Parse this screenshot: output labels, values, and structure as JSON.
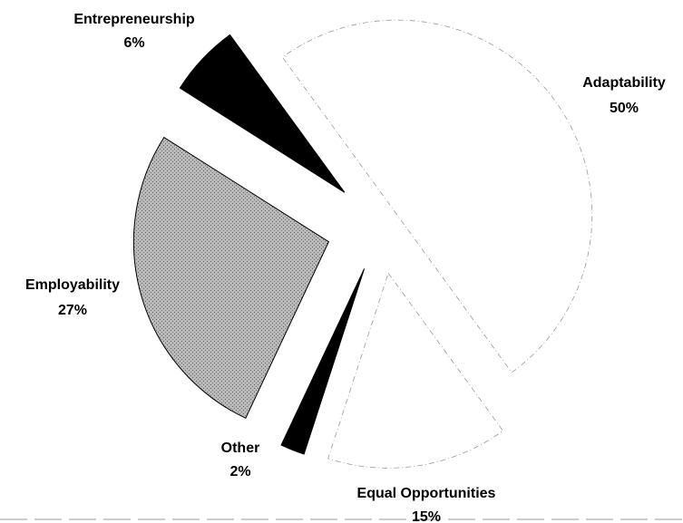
{
  "chart_data": {
    "type": "pie",
    "categories": [
      "Adaptability",
      "Equal Opportunities",
      "Other",
      "Employability",
      "Entrepreneurship"
    ],
    "values": [
      50,
      15,
      2,
      27,
      6
    ],
    "value_labels": [
      "50%",
      "15%",
      "2%",
      "27%",
      "6%"
    ],
    "colors": [
      "#ffffff",
      "#ffffff",
      "#000000",
      "#b0b0b0",
      "#000000"
    ]
  }
}
